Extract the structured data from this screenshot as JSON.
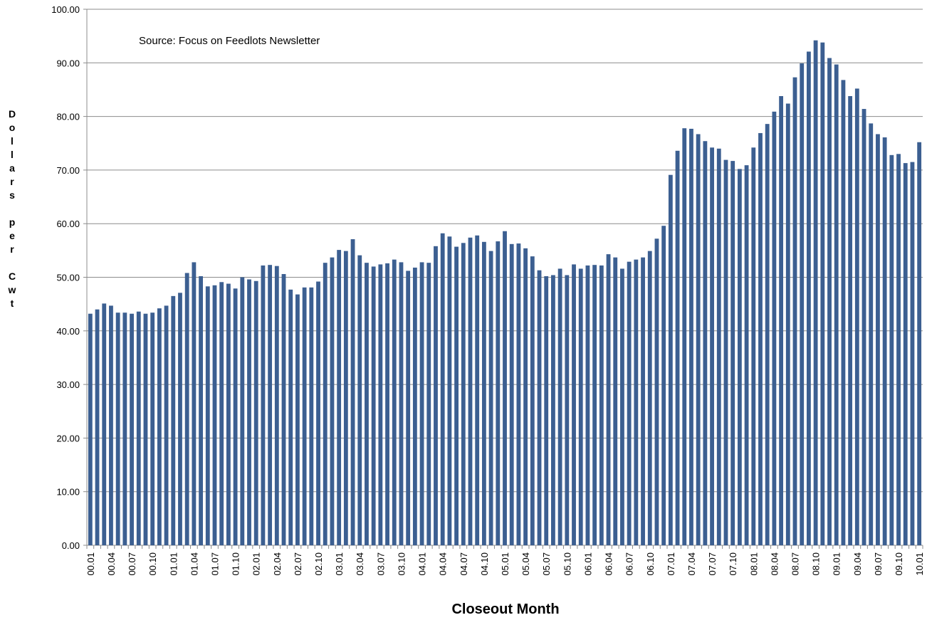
{
  "chart_data": {
    "type": "bar",
    "annotation": "Source:  Focus on Feedlots Newsletter",
    "xlabel": "Closeout Month",
    "ylabel": "Dollars per Cwt",
    "color": "#3c5f91",
    "grid": true,
    "ylim": [
      0,
      100
    ],
    "yticks": [
      {
        "value": 0,
        "label": "0.00"
      },
      {
        "value": 10,
        "label": "10.00"
      },
      {
        "value": 20,
        "label": "20.00"
      },
      {
        "value": 30,
        "label": "30.00"
      },
      {
        "value": 40,
        "label": "40.00"
      },
      {
        "value": 50,
        "label": "50.00"
      },
      {
        "value": 60,
        "label": "60.00"
      },
      {
        "value": 70,
        "label": "70.00"
      },
      {
        "value": 80,
        "label": "80.00"
      },
      {
        "value": 90,
        "label": "90.00"
      },
      {
        "value": 100,
        "label": "100.00"
      }
    ],
    "categories": [
      "00.01",
      null,
      null,
      "00.04",
      null,
      null,
      "00.07",
      null,
      null,
      "00.10",
      null,
      null,
      "01.01",
      null,
      null,
      "01.04",
      null,
      null,
      "01.07",
      null,
      null,
      "01.10",
      null,
      null,
      "02.01",
      null,
      null,
      "02.04",
      null,
      null,
      "02.07",
      null,
      null,
      "02.10",
      null,
      null,
      "03.01",
      null,
      null,
      "03.04",
      null,
      null,
      "03.07",
      null,
      null,
      "03.10",
      null,
      null,
      "04.01",
      null,
      null,
      "04.04",
      null,
      null,
      "04.07",
      null,
      null,
      "04.10",
      null,
      null,
      "05.01",
      null,
      null,
      "05.04",
      null,
      null,
      "05.07",
      null,
      null,
      "05.10",
      null,
      null,
      "06.01",
      null,
      null,
      "06.04",
      null,
      null,
      "06.07",
      null,
      null,
      "06.10",
      null,
      null,
      "07.01",
      null,
      null,
      "07.04",
      null,
      null,
      "07.07",
      null,
      null,
      "07.10",
      null,
      null,
      "08.01",
      null,
      null,
      "08.04",
      null,
      null,
      "08.07",
      null,
      null,
      "08.10",
      null,
      null,
      "09.01",
      null,
      null,
      "09.04",
      null,
      null,
      "09.07",
      null,
      null,
      "09.10",
      null,
      null,
      "10.01"
    ],
    "values": [
      43.2,
      44.0,
      45.1,
      44.7,
      43.4,
      43.4,
      43.2,
      43.6,
      43.2,
      43.4,
      44.2,
      44.7,
      46.5,
      47.1,
      50.8,
      52.8,
      50.2,
      48.3,
      48.5,
      49.1,
      48.8,
      47.9,
      50.0,
      49.6,
      49.3,
      52.2,
      52.3,
      52.1,
      50.6,
      47.7,
      46.8,
      48.1,
      48.1,
      49.2,
      52.7,
      53.7,
      55.1,
      54.9,
      57.1,
      54.1,
      52.7,
      52.0,
      52.4,
      52.6,
      53.3,
      52.8,
      51.2,
      51.8,
      52.8,
      52.7,
      55.8,
      58.2,
      57.6,
      55.7,
      56.4,
      57.4,
      57.8,
      56.6,
      54.9,
      56.7,
      58.6,
      56.2,
      56.3,
      55.4,
      53.9,
      51.3,
      50.2,
      50.4,
      51.6,
      50.4,
      52.4,
      51.6,
      52.2,
      52.3,
      52.2,
      54.3,
      53.7,
      51.6,
      52.9,
      53.3,
      53.7,
      54.9,
      57.2,
      59.6,
      69.1,
      73.6,
      77.8,
      77.7,
      76.7,
      75.4,
      74.2,
      74.0,
      71.9,
      71.7,
      70.2,
      70.9,
      74.2,
      76.9,
      78.6,
      80.9,
      83.8,
      82.4,
      87.3,
      89.9,
      92.1,
      94.2,
      93.8,
      90.9,
      89.7,
      86.8,
      83.8,
      85.2,
      81.4,
      78.7,
      76.7,
      76.1,
      72.8,
      73.0,
      71.3,
      71.5,
      75.2
    ]
  }
}
